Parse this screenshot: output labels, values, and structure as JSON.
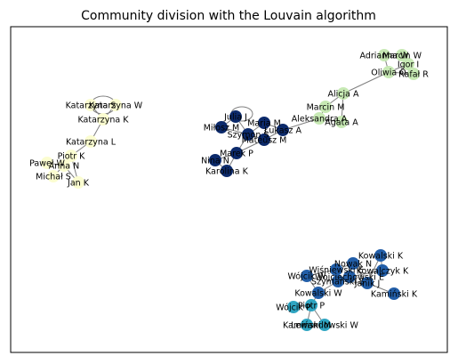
{
  "title": "Community division with the Louvain algorithm",
  "colors": {
    "community_pale_yellow": "#fbfdd0",
    "community_light_green": "#c7e9b4",
    "community_navy": "#0c2a6b",
    "community_blue": "#225ea8",
    "community_teal": "#2fa5c2",
    "edge": "#808080"
  },
  "communities": [
    {
      "color": "#fbfdd0",
      "nodes": [
        "Katarzyna W",
        "Katarzyna S",
        "Katarzyna K",
        "Katarzyna L",
        "Piotr K",
        "Paweł W",
        "Anna N",
        "Michał S",
        "Jan K"
      ]
    },
    {
      "color": "#c7e9b4",
      "nodes": [
        "Adrianna W",
        "Marcin W",
        "Igor I",
        "Oliwia O",
        "Rafał R",
        "Alicja A",
        "Marcin M",
        "Aleksandra A",
        "Agata A"
      ]
    },
    {
      "color": "#0c2a6b",
      "nodes": [
        "Julia J",
        "Maria M",
        "Miłosz M",
        "Łukasz A",
        "Szymon S",
        "Mateusz M",
        "Marek P",
        "Nina N",
        "Karolina K"
      ]
    },
    {
      "color": "#225ea8",
      "nodes": [
        "Kowalski K",
        "Nowak N",
        "Wiśniewski E",
        "Wojciechowski E",
        "Kowalczyk K",
        "Wójcik W",
        "Szymański S",
        "Janik J",
        "Kamiński K",
        "Kowalski W"
      ]
    },
    {
      "color": "#2fa5c2",
      "nodes": [
        "Wójcik P",
        "Piotr P",
        "Kamiński M",
        "Lewandowski W"
      ]
    }
  ]
}
